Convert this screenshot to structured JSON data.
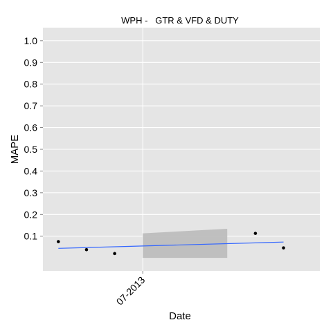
{
  "chart_data": {
    "type": "scatter",
    "title": "WPH -   GTR & VFD & DUTY",
    "xlabel": "Date",
    "ylabel": "MAPE",
    "ylim": [
      -0.06,
      1.06
    ],
    "y_ticks": [
      0.1,
      0.2,
      0.3,
      0.4,
      0.5,
      0.6,
      0.7,
      0.8,
      0.9,
      1.0
    ],
    "y_tick_labels": [
      "0.1",
      "0.2",
      "0.3",
      "0.4",
      "0.5",
      "0.6",
      "0.7",
      "0.8",
      "0.9",
      "1.0"
    ],
    "x_ticks": [
      {
        "label": "07-2013",
        "value": "2013-07"
      }
    ],
    "grid": true,
    "points": [
      {
        "x": "2013-04",
        "y": 0.075
      },
      {
        "x": "2013-05",
        "y": 0.038
      },
      {
        "x": "2013-06",
        "y": 0.02
      },
      {
        "x": "2013-11",
        "y": 0.113
      },
      {
        "x": "2013-12",
        "y": 0.046
      }
    ],
    "trend": {
      "method": "linear",
      "color": "#3366ff",
      "start": {
        "x": "2013-04",
        "y": 0.044
      },
      "end": {
        "x": "2013-12",
        "y": 0.073
      },
      "confidence_band": {
        "color": "#bdbdbd",
        "start": {
          "x": "2013-07",
          "lower": 0.0,
          "upper": 0.113
        },
        "end": {
          "x": "2013-10",
          "lower": 0.0,
          "upper": 0.134
        }
      }
    },
    "colors": {
      "panel": "#e5e5e5",
      "grid": "#ffffff",
      "points": "#000000"
    }
  }
}
